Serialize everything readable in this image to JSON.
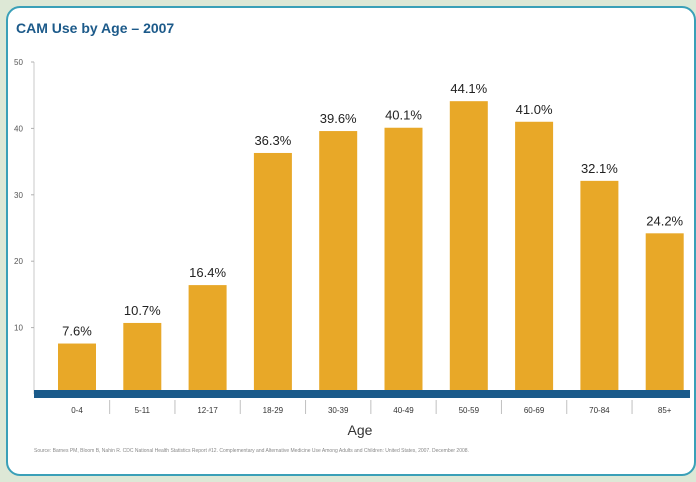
{
  "title": "CAM Use by Age – 2007",
  "source": "Source: Barnes PM, Bloom B, Nahin R. CDC National Health Statistics Report #12. Complementary and Alternative Medicine Use Among Adults and Children: United States, 2007. December 2008.",
  "colors": {
    "bar": "#e8a828",
    "baseline": "#1a5a8a",
    "frame": "#3aa0b8",
    "title": "#1c5a8a"
  },
  "chart_data": {
    "type": "bar",
    "title": "CAM Use by Age – 2007",
    "xlabel": "Age",
    "ylabel": "",
    "categories": [
      "0-4",
      "5-11",
      "12-17",
      "18-29",
      "30-39",
      "40-49",
      "50-59",
      "60-69",
      "70-84",
      "85+"
    ],
    "values": [
      7.6,
      10.7,
      16.4,
      36.3,
      39.6,
      40.1,
      44.1,
      41.0,
      32.1,
      24.2
    ],
    "data_labels": [
      "7.6%",
      "10.7%",
      "16.4%",
      "36.3%",
      "39.6%",
      "40.1%",
      "44.1%",
      "41.0%",
      "32.1%",
      "24.2%"
    ],
    "ylim": [
      0,
      50
    ],
    "yticks": [
      10,
      20,
      30,
      40,
      50
    ],
    "grid": false,
    "legend": "none"
  }
}
